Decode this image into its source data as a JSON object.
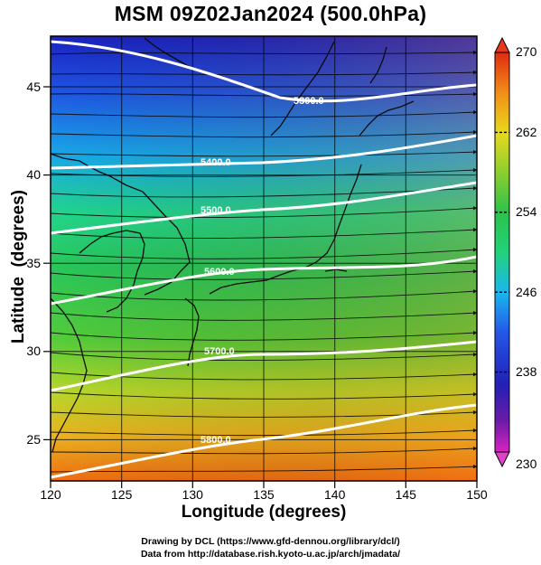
{
  "title": "MSM 09Z02Jan2024 (500.0hPa)",
  "x_axis": {
    "label": "Longitude (degrees)",
    "ticks": [
      "120",
      "125",
      "130",
      "135",
      "140",
      "145",
      "150"
    ],
    "range": [
      120,
      150
    ]
  },
  "y_axis": {
    "label": "Latitude  (degrees)",
    "ticks": [
      "25",
      "30",
      "35",
      "40",
      "45"
    ],
    "range": [
      22.4,
      47.6
    ]
  },
  "colorbar": {
    "min_label": "230",
    "max_label": "270",
    "ticks": [
      "238",
      "246",
      "254",
      "262"
    ],
    "range": [
      230,
      270
    ]
  },
  "contours": [
    {
      "label": "5300.0"
    },
    {
      "label": "5400.0"
    },
    {
      "label": "5500.0"
    },
    {
      "label": "5600.0"
    },
    {
      "label": "5700.0"
    },
    {
      "label": "5800.0"
    }
  ],
  "credits": [
    "Drawing by DCL (https://www.gfd-dennou.org/library/dcl/)",
    "Data from http://database.rish.kyoto-u.ac.jp/arch/jmadata/"
  ],
  "colors": {
    "cold": "#1d2fc8",
    "warm": "#f27515",
    "contour": "#ffffff",
    "streamline": "#000000"
  }
}
